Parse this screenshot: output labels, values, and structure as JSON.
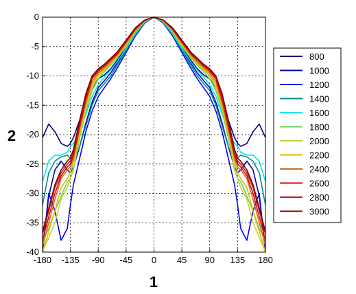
{
  "chart_data": {
    "type": "line",
    "title": "",
    "xlabel": "1",
    "ylabel": "2",
    "xlim": [
      -180,
      180
    ],
    "ylim": [
      -40,
      0
    ],
    "xticks": [
      -180,
      -135,
      -90,
      -45,
      0,
      45,
      90,
      135,
      180
    ],
    "xtick_labels": [
      "-180",
      "-135",
      "-90",
      "-45",
      "0",
      "45",
      "90",
      "135",
      "180"
    ],
    "yticks": [
      0,
      -5,
      -10,
      -15,
      -20,
      -25,
      -30,
      -35,
      -40
    ],
    "ytick_labels": [
      "0",
      "-5",
      "-10",
      "-15",
      "-20",
      "-25",
      "-30",
      "-35",
      "-40"
    ],
    "grid": true,
    "grid_style": "dotted",
    "legend_position": "right",
    "x": [
      0,
      15,
      30,
      45,
      60,
      70,
      80,
      90,
      100,
      110,
      120,
      130,
      135,
      140,
      150,
      160,
      170,
      180
    ],
    "symmetric": true,
    "series": [
      {
        "name": "800",
        "color": "#00007f",
        "values": [
          0,
          -0.8,
          -2.7,
          -5.2,
          -7.4,
          -8.8,
          -9.8,
          -10.5,
          -12.0,
          -14.5,
          -17.5,
          -20.5,
          -21.5,
          -22.0,
          -21.5,
          -19.5,
          -18.2,
          -20.5
        ]
      },
      {
        "name": "1000",
        "color": "#0000aa",
        "values": [
          0,
          -0.9,
          -3.0,
          -5.5,
          -7.9,
          -9.5,
          -10.8,
          -12.0,
          -14.5,
          -18.0,
          -22.0,
          -25.5,
          -26.5,
          -26.0,
          -24.5,
          -26.0,
          -30.5,
          -40.0
        ]
      },
      {
        "name": "1200",
        "color": "#0000ff",
        "values": [
          0,
          -1.0,
          -3.2,
          -6.0,
          -8.8,
          -10.5,
          -12.0,
          -13.5,
          -16.0,
          -19.5,
          -24.0,
          -28.5,
          -32.0,
          -36.0,
          -38.0,
          -33.0,
          -30.0,
          -40.0
        ]
      },
      {
        "name": "1400",
        "color": "#008b8b",
        "values": [
          0,
          -0.9,
          -3.0,
          -5.6,
          -8.3,
          -10.0,
          -11.3,
          -12.5,
          -15.0,
          -18.5,
          -22.0,
          -24.5,
          -24.0,
          -23.5,
          -23.8,
          -24.5,
          -26.5,
          -32.0
        ]
      },
      {
        "name": "1600",
        "color": "#00e5ee",
        "values": [
          0,
          -0.8,
          -2.8,
          -5.3,
          -7.7,
          -9.0,
          -10.2,
          -11.5,
          -13.5,
          -16.5,
          -19.5,
          -21.5,
          -22.0,
          -23.0,
          -23.5,
          -23.5,
          -24.5,
          -28.0
        ]
      },
      {
        "name": "1800",
        "color": "#66cc66",
        "values": [
          0,
          -0.7,
          -2.5,
          -5.0,
          -7.0,
          -8.2,
          -9.3,
          -10.5,
          -12.5,
          -16.0,
          -20.5,
          -26.0,
          -27.5,
          -28.0,
          -30.5,
          -33.0,
          -36.0,
          -38.0
        ]
      },
      {
        "name": "2000",
        "color": "#bfd72f",
        "values": [
          0,
          -0.7,
          -2.4,
          -4.8,
          -6.8,
          -8.0,
          -9.0,
          -10.0,
          -12.0,
          -15.5,
          -20.0,
          -25.5,
          -27.5,
          -29.0,
          -31.0,
          -35.0,
          -37.5,
          -40.0
        ]
      },
      {
        "name": "2200",
        "color": "#e6b800",
        "values": [
          0,
          -0.6,
          -2.3,
          -4.6,
          -6.7,
          -7.8,
          -8.8,
          -9.8,
          -11.5,
          -15.0,
          -19.5,
          -24.5,
          -26.5,
          -27.5,
          -29.0,
          -33.0,
          -36.5,
          -40.0
        ]
      },
      {
        "name": "2400",
        "color": "#d2691e",
        "values": [
          0,
          -0.6,
          -2.2,
          -4.4,
          -6.5,
          -7.6,
          -8.6,
          -9.5,
          -11.0,
          -14.5,
          -19.0,
          -24.0,
          -25.5,
          -26.0,
          -27.5,
          -31.0,
          -35.0,
          -39.0
        ]
      },
      {
        "name": "2600",
        "color": "#e60000",
        "values": [
          0,
          -0.5,
          -2.0,
          -4.2,
          -6.3,
          -7.3,
          -8.3,
          -9.2,
          -10.5,
          -14.0,
          -18.5,
          -23.5,
          -25.0,
          -25.5,
          -27.0,
          -30.0,
          -34.0,
          -38.0
        ]
      },
      {
        "name": "2800",
        "color": "#b22222",
        "values": [
          0,
          -0.5,
          -1.9,
          -4.0,
          -6.1,
          -7.1,
          -8.1,
          -9.0,
          -10.2,
          -13.5,
          -18.0,
          -23.0,
          -24.5,
          -25.0,
          -26.5,
          -29.0,
          -33.0,
          -37.0
        ]
      },
      {
        "name": "3000",
        "color": "#7f0000",
        "values": [
          0,
          -0.5,
          -1.8,
          -3.9,
          -6.0,
          -7.0,
          -8.0,
          -8.8,
          -10.0,
          -13.0,
          -17.5,
          -22.5,
          -24.0,
          -24.5,
          -26.0,
          -28.5,
          -32.5,
          -36.5
        ]
      }
    ]
  }
}
